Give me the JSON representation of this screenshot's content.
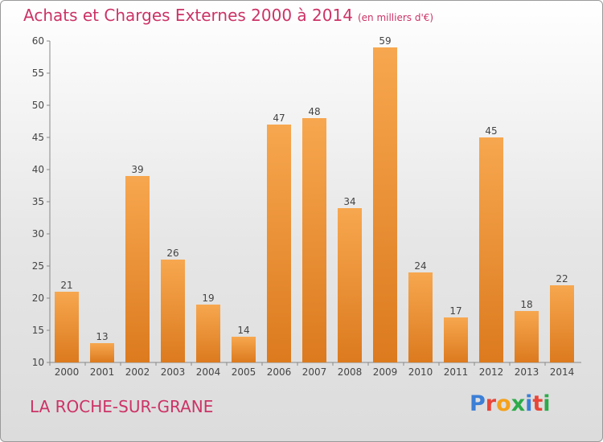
{
  "header": {
    "title": "Achats et Charges Externes 2000 à 2014",
    "subtitle": "(en milliers d'€)"
  },
  "footer": {
    "commune": "LA ROCHE-SUR-GRANE",
    "brand_letters": [
      "P",
      "r",
      "o",
      "x",
      "i",
      "t",
      "i"
    ]
  },
  "colors": {
    "title": "#cc3366",
    "bar_light": "#f7a74f",
    "bar_dark": "#dc7a1e",
    "brand": [
      "#3b7fd6",
      "#e8463a",
      "#f4a11c",
      "#2eaa4a",
      "#3b7fd6",
      "#e8463a",
      "#2eaa4a"
    ]
  },
  "chart_data": {
    "type": "bar",
    "title": "Achats et Charges Externes 2000 à 2014",
    "subtitle": "(en milliers d'€)",
    "categories": [
      "2000",
      "2001",
      "2002",
      "2003",
      "2004",
      "2005",
      "2006",
      "2007",
      "2008",
      "2009",
      "2010",
      "2011",
      "2012",
      "2013",
      "2014"
    ],
    "values": [
      21,
      13,
      39,
      26,
      19,
      14,
      47,
      48,
      34,
      59,
      24,
      17,
      45,
      18,
      22
    ],
    "ylim": [
      10,
      60
    ],
    "yticks": [
      10,
      15,
      20,
      25,
      30,
      35,
      40,
      45,
      50,
      55,
      60
    ],
    "xlabel": "",
    "ylabel": "",
    "grid": false,
    "data_labels": true
  }
}
